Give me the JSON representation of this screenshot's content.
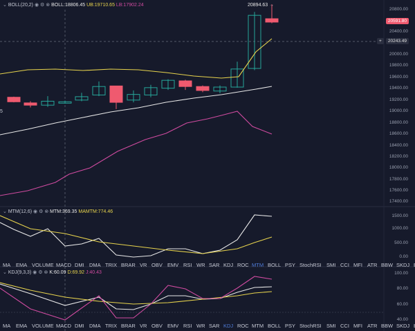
{
  "colors": {
    "bg": "#161a2b",
    "up": "#26a69a",
    "down": "#ef5a6f",
    "boll_mid": "#e8e8e8",
    "boll_upper": "#e8d44d",
    "boll_lower": "#d04ba0",
    "active_tab": "#4f7bd8"
  },
  "boll": {
    "name": "BOLL(20,2)",
    "mid": "BOLL:18806.45",
    "ub": "UB:19710.65",
    "lb": "LB:17902.24"
  },
  "price_axis": [
    "20800.00",
    "20600.00",
    "20400.00",
    "20000.00",
    "19800.00",
    "19600.00",
    "19400.00",
    "19200.00",
    "19000.00",
    "18800.00",
    "18600.00",
    "18400.00",
    "18200.00",
    "18000.00",
    "17800.00",
    "17600.00",
    "17400.00"
  ],
  "high_label": "20894.63",
  "last_price_tag": "20591.80",
  "crosshair_price_tag": "20243.49",
  "plus_icon": "plus-icon",
  "left_edge_text": "5",
  "mtm": {
    "name": "MTM(12,6)",
    "mtm": "MTM:369.35",
    "mamtm": "MAMTM:774.46",
    "axis": [
      "1500.00",
      "1000.00",
      "500.00",
      "0.00"
    ]
  },
  "tabs_row1": [
    "MA",
    "EMA",
    "VOLUME",
    "MACD",
    "DMI",
    "DMA",
    "TRIX",
    "BRAR",
    "VR",
    "OBV",
    "EMV",
    "RSI",
    "WR",
    "SAR",
    "KDJ",
    "ROC",
    "MTM",
    "BOLL",
    "PSY",
    "StochRSI",
    "SMI",
    "CCI",
    "MFI",
    "ATR",
    "BBW",
    "SKDJ",
    "BIAS"
  ],
  "tabs_row1_active": "MTM",
  "kdj": {
    "name": "KDJ(9,3,3)",
    "k": "K:60.09",
    "d": "D:69.92",
    "j": "J:40.43",
    "axis": [
      "100.00",
      "80.00",
      "60.00",
      "40.00"
    ]
  },
  "tabs_row2": [
    "MA",
    "EMA",
    "VOLUME",
    "MACD",
    "DMI",
    "DMA",
    "TRIX",
    "BRAR",
    "VR",
    "OBV",
    "EMV",
    "RSI",
    "WR",
    "SAR",
    "KDJ",
    "ROC",
    "MTM",
    "BOLL",
    "PSY",
    "StochRSI",
    "SMI",
    "CCI",
    "MFI",
    "ATR",
    "BBW",
    "SKDJ",
    "BIAS"
  ],
  "tabs_row2_active": "KDJ",
  "candles": [
    {
      "o": 19250,
      "c": 19170,
      "h": 19260,
      "l": 19160
    },
    {
      "o": 19150,
      "c": 19110,
      "h": 19180,
      "l": 19070
    },
    {
      "o": 19110,
      "c": 19180,
      "h": 19270,
      "l": 19080
    },
    {
      "o": 19160,
      "c": 19170,
      "h": 19190,
      "l": 19140
    },
    {
      "o": 19200,
      "c": 19260,
      "h": 19330,
      "l": 19180
    },
    {
      "o": 19290,
      "c": 19440,
      "h": 19530,
      "l": 19270
    },
    {
      "o": 19450,
      "c": 19160,
      "h": 19450,
      "l": 19040
    },
    {
      "o": 19200,
      "c": 19300,
      "h": 19370,
      "l": 19160
    },
    {
      "o": 19290,
      "c": 19420,
      "h": 19470,
      "l": 19250
    },
    {
      "o": 19410,
      "c": 19550,
      "h": 19570,
      "l": 19380
    },
    {
      "o": 19540,
      "c": 19440,
      "h": 19560,
      "l": 19380
    },
    {
      "o": 19440,
      "c": 19370,
      "h": 19460,
      "l": 19340
    },
    {
      "o": 19360,
      "c": 19430,
      "h": 19460,
      "l": 19320
    },
    {
      "o": 19430,
      "c": 19750,
      "h": 19880,
      "l": 19420
    },
    {
      "o": 19760,
      "c": 20700,
      "h": 20760,
      "l": 19730
    },
    {
      "o": 20640,
      "c": 20580,
      "h": 20894.63,
      "l": 20560
    }
  ]
}
